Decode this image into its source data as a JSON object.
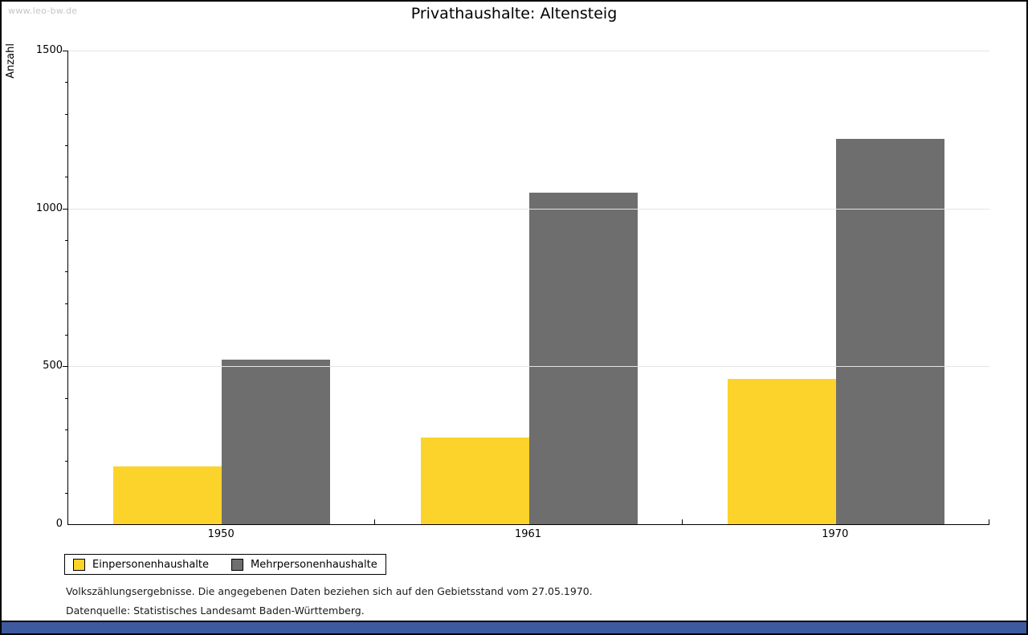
{
  "watermark": "www.leo-bw.de",
  "chart_data": {
    "type": "bar",
    "title": "Privathaushalte: Altensteig",
    "categories": [
      "1950",
      "1961",
      "1970"
    ],
    "series": [
      {
        "name": "Einpersonenhaushalte",
        "color": "#FCD32B",
        "values": [
          184,
          275,
          461
        ]
      },
      {
        "name": "Mehrpersonenhaushalte",
        "color": "#6E6E6E",
        "values": [
          521,
          1050,
          1220
        ]
      }
    ],
    "xlabel": "",
    "ylabel": "Anzahl",
    "ylim": [
      0,
      1500
    ],
    "yticks": [
      0,
      500,
      1000,
      1500
    ],
    "minor_tick_interval": 100,
    "grid": true,
    "legend_position": "bottom-left"
  },
  "footnotes": {
    "line1": "Volkszählungsergebnisse. Die angegebenen Daten beziehen sich auf den Gebietsstand vom 27.05.1970.",
    "line2": "Datenquelle: Statistisches Landesamt Baden-Württemberg."
  },
  "colors": {
    "bar_yellow": "#FCD32B",
    "bar_gray": "#6E6E6E",
    "gridline": "#E4E4E4",
    "watermark_text": "#C6C6C6",
    "footer_bar": "#3D5A9E"
  }
}
